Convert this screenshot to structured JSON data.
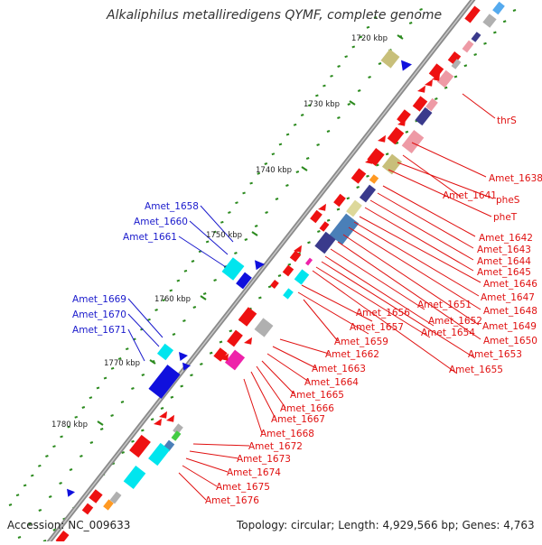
{
  "title": "Alkaliphilus metalliredigens QYMF, complete genome",
  "accession": "Accession: NC_009633",
  "topology": "Topology: circular; Length: 4,929,566 bp; Genes: 4,763",
  "colors": {
    "backbone": "#8a8a8a",
    "tick": "#2b8a1e",
    "forward_label": "#1a1acc",
    "reverse_label": "#e01010",
    "gene_red": "#ee1111",
    "gene_blue": "#1010dd",
    "cyan": "#00e5ee",
    "magenta": "#ee22aa",
    "olive": "#c8bf7a",
    "navy": "#3a3a8c",
    "steel": "#4a7fb8",
    "pink": "#ee9aa5",
    "gray": "#b0b0b0"
  },
  "kbp_labels": [
    "1720 kbp",
    "1730 kbp",
    "1740 kbp",
    "1750 kbp",
    "1760 kbp",
    "1770 kbp",
    "1780 kbp"
  ],
  "forward_labels": [
    "Amet_1658",
    "Amet_1660",
    "Amet_1661",
    "Amet_1669",
    "Amet_1670",
    "Amet_1671"
  ],
  "reverse_labels": [
    "thrS",
    "Amet_1638",
    "Amet_1641",
    "pheS",
    "pheT",
    "Amet_1642",
    "Amet_1643",
    "Amet_1644",
    "Amet_1645",
    "Amet_1646",
    "Amet_1647",
    "Amet_1648",
    "Amet_1649",
    "Amet_1650",
    "Amet_1651",
    "Amet_1652",
    "Amet_1653",
    "Amet_1654",
    "Amet_1655",
    "Amet_1656",
    "Amet_1657",
    "Amet_1659",
    "Amet_1662",
    "Amet_1663",
    "Amet_1664",
    "Amet_1665",
    "Amet_1666",
    "Amet_1667",
    "Amet_1668",
    "Amet_1672",
    "Amet_1673",
    "Amet_1674",
    "Amet_1675",
    "Amet_1676"
  ]
}
